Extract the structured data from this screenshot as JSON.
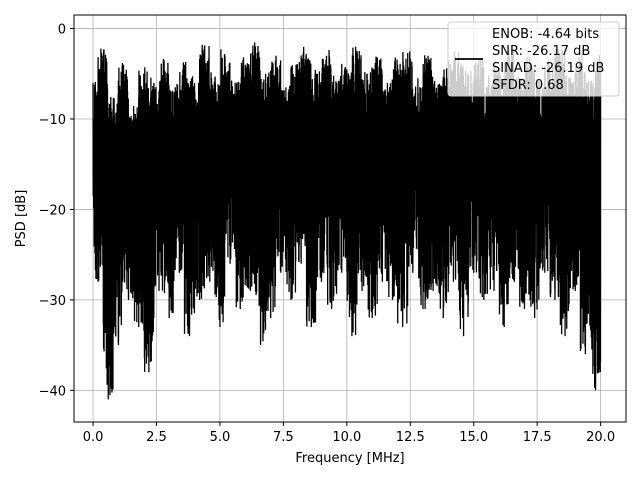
{
  "chart_data": {
    "type": "line",
    "xlabel": "Frequency [MHz]",
    "ylabel": "PSD [dB]",
    "xlim": [
      -0.75,
      21.0
    ],
    "ylim": [
      -43.5,
      1.5
    ],
    "xticks": [
      0.0,
      2.5,
      5.0,
      7.5,
      10.0,
      12.5,
      15.0,
      17.5,
      20.0
    ],
    "xtick_labels": [
      "0.0",
      "2.5",
      "5.0",
      "7.5",
      "10.0",
      "12.5",
      "15.0",
      "17.5",
      "20.0"
    ],
    "yticks": [
      0,
      -10,
      -20,
      -30,
      -40
    ],
    "ytick_labels": [
      "0",
      "−10",
      "−20",
      "−30",
      "−40"
    ],
    "grid": true,
    "legend_placement": "upper-right",
    "legend_entries": [
      "ENOB: -4.64 bits",
      "SNR: -26.17 dB",
      "SINAD: -26.19 dB",
      "SFDR: 0.68"
    ],
    "series": [
      {
        "color": "#000000",
        "x": [
          0.0,
          0.2,
          0.4,
          0.6,
          0.8,
          1.0,
          1.2,
          1.4,
          1.6,
          1.8,
          2.0,
          2.2,
          2.4,
          2.6,
          2.8,
          3.0,
          3.2,
          3.4,
          3.6,
          3.8,
          4.0,
          4.2,
          4.4,
          4.6,
          4.8,
          5.0,
          5.2,
          5.4,
          5.6,
          5.8,
          6.0,
          6.2,
          6.4,
          6.6,
          6.8,
          7.0,
          7.2,
          7.4,
          7.6,
          7.8,
          8.0,
          8.2,
          8.4,
          8.6,
          8.8,
          9.0,
          9.2,
          9.4,
          9.6,
          9.8,
          10.0,
          10.2,
          10.4,
          10.6,
          10.8,
          11.0,
          11.2,
          11.4,
          11.6,
          11.8,
          12.0,
          12.2,
          12.4,
          12.6,
          12.8,
          13.0,
          13.2,
          13.4,
          13.6,
          13.8,
          14.0,
          14.2,
          14.4,
          14.6,
          14.8,
          15.0,
          15.2,
          15.4,
          15.6,
          15.8,
          16.0,
          16.2,
          16.4,
          16.6,
          16.8,
          17.0,
          17.2,
          17.4,
          17.6,
          17.8,
          18.0,
          18.2,
          18.4,
          18.6,
          18.8,
          19.0,
          19.2,
          19.4,
          19.6,
          19.8,
          20.0
        ],
        "y": [
          -6.0,
          -28.0,
          -3.0,
          -41.0,
          -8.0,
          -35.0,
          -4.0,
          -30.0,
          -9.0,
          -33.0,
          -5.0,
          -38.0,
          -6.0,
          -29.0,
          -3.5,
          -32.0,
          -7.0,
          -27.0,
          -4.0,
          -34.0,
          -6.0,
          -30.0,
          -2.5,
          -28.0,
          -5.5,
          -33.0,
          -3.0,
          -26.0,
          -6.0,
          -31.0,
          -4.0,
          -29.0,
          -2.0,
          -35.0,
          -5.0,
          -32.0,
          -3.5,
          -27.0,
          -6.5,
          -30.0,
          -4.0,
          -26.0,
          -2.8,
          -33.0,
          -5.0,
          -28.0,
          -3.0,
          -31.0,
          -6.0,
          -27.0,
          -4.5,
          -34.0,
          -2.5,
          -29.0,
          -5.0,
          -32.0,
          -3.2,
          -28.0,
          -6.0,
          -30.0,
          -4.0,
          -33.0,
          -2.7,
          -27.0,
          -5.5,
          -31.0,
          -3.0,
          -29.0,
          -6.2,
          -32.0,
          -4.0,
          -28.0,
          -2.6,
          -34.0,
          -5.2,
          -27.0,
          -3.3,
          -30.0,
          -6.0,
          -29.0,
          -4.4,
          -33.0,
          -2.9,
          -28.0,
          -5.7,
          -31.0,
          -3.1,
          -32.0,
          -6.3,
          -27.0,
          -4.2,
          -30.0,
          -2.8,
          -34.0,
          -5.4,
          -29.0,
          -3.6,
          -36.0,
          -5.8,
          -40.0,
          -3.5
        ]
      }
    ]
  }
}
